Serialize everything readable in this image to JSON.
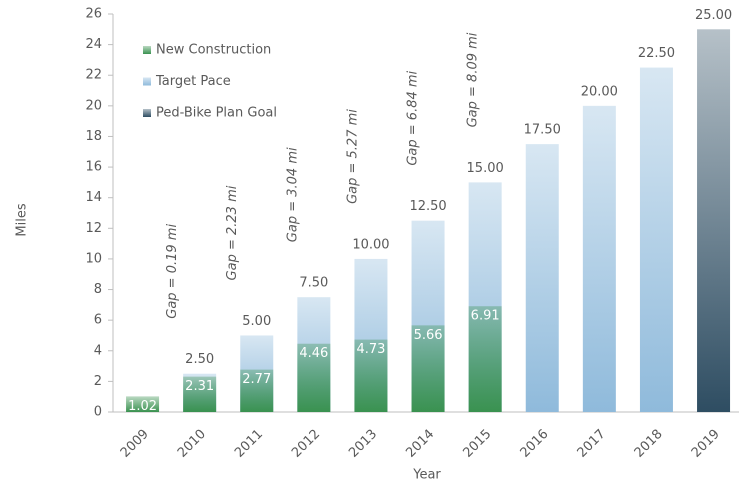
{
  "chart_data": {
    "type": "bar",
    "barmode": "overlay",
    "xlabel": "Year",
    "ylabel": "Miles",
    "categories": [
      "2009",
      "2010",
      "2011",
      "2012",
      "2013",
      "2014",
      "2015",
      "2016",
      "2017",
      "2018",
      "2019"
    ],
    "series": [
      {
        "name": "Target Pace",
        "color": "#8fbadb",
        "values": [
          null,
          2.5,
          5,
          7.5,
          10,
          12.5,
          15,
          17.5,
          20,
          22.5,
          null
        ],
        "value_labels": [
          null,
          "2.50",
          "5.00",
          "7.50",
          "10.00",
          "12.50",
          "15.00",
          "17.50",
          "20.00",
          "22.50",
          null
        ]
      },
      {
        "name": "Ped-Bike Plan Goal",
        "color": "#2e4d62",
        "values": [
          null,
          null,
          null,
          null,
          null,
          null,
          null,
          null,
          null,
          null,
          25
        ],
        "value_labels": [
          null,
          null,
          null,
          null,
          null,
          null,
          null,
          null,
          null,
          null,
          "25.00"
        ]
      },
      {
        "name": "New Construction",
        "color": "#3a9250",
        "values": [
          1.02,
          2.31,
          2.77,
          4.46,
          4.73,
          5.66,
          6.91,
          null,
          null,
          null,
          null
        ]
      }
    ],
    "legend_order": [
      "New Construction",
      "Target Pace",
      "Ped-Bike Plan Goal"
    ],
    "gap_labels": [
      null,
      "Gap = 0.19 mi",
      "Gap = 2.23 mi",
      "Gap = 3.04 mi",
      "Gap = 5.27 mi",
      "Gap = 6.84 mi",
      "Gap = 8.09 mi",
      null,
      null,
      null,
      null
    ],
    "ylim": [
      0,
      26
    ],
    "yticks": [
      0,
      2,
      4,
      6,
      8,
      10,
      12,
      14,
      16,
      18,
      20,
      22,
      24,
      26
    ],
    "legend": "upper left"
  }
}
